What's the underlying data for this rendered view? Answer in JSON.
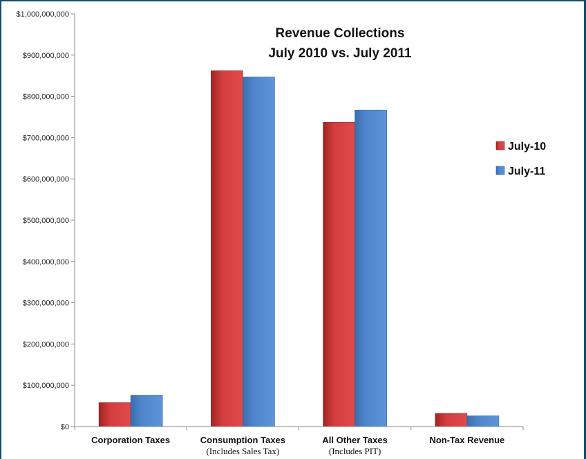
{
  "chart_data": {
    "type": "bar",
    "title_lines": [
      "Revenue Collections",
      "July 2010 vs. July 2011"
    ],
    "categories": [
      "Corporation Taxes",
      "Consumption Taxes",
      "All Other Taxes",
      "Non-Tax Revenue"
    ],
    "category_sublabels": [
      "",
      "(Includes Sales Tax)",
      "(Includes PIT)",
      ""
    ],
    "series": [
      {
        "name": "July-10",
        "color": "#d43d3d",
        "values": [
          58000000,
          862000000,
          737000000,
          32000000
        ]
      },
      {
        "name": "July-11",
        "color": "#4f86cc",
        "values": [
          76000000,
          847000000,
          767000000,
          26000000
        ]
      }
    ],
    "ylim": [
      0,
      1000000000
    ],
    "yticks": [
      0,
      100000000,
      200000000,
      300000000,
      400000000,
      500000000,
      600000000,
      700000000,
      800000000,
      900000000,
      1000000000
    ],
    "ytick_labels": [
      "$0",
      "$100,000,000",
      "$200,000,000",
      "$300,000,000",
      "$400,000,000",
      "$500,000,000",
      "$600,000,000",
      "$700,000,000",
      "$800,000,000",
      "$900,000,000",
      "$1,000,000,000"
    ],
    "legend_position": "right",
    "grid": false
  }
}
